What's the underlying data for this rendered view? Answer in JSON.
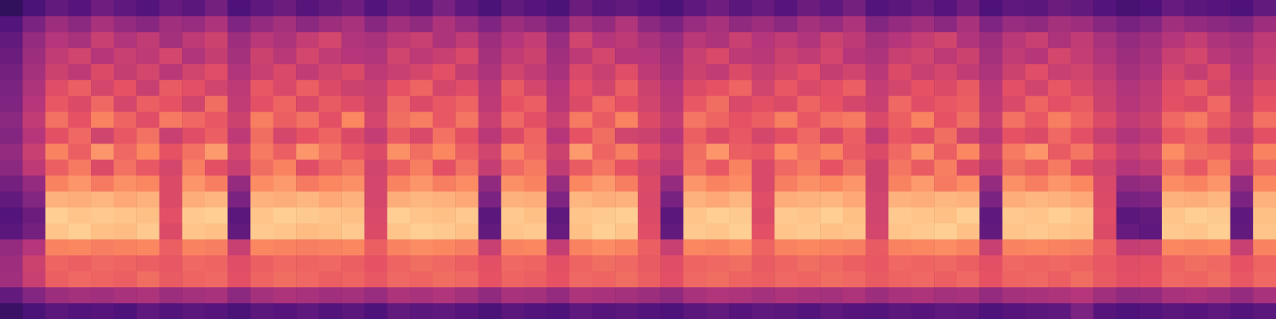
{
  "chart_data": {
    "type": "heatmap",
    "tick_labels": false,
    "grid": false,
    "zlim": [
      0,
      1
    ],
    "cells": [
      [
        0.2,
        0.24,
        0.28,
        0.26,
        0.27,
        0.25,
        0.29,
        0.26,
        0.28,
        0.27,
        0.24,
        0.28,
        0.27,
        0.29,
        0.26,
        0.28,
        0.25,
        0.3,
        0.28,
        0.29,
        0.27,
        0.24,
        0.28,
        0.26,
        0.25,
        0.29,
        0.27,
        0.28,
        0.26,
        0.25,
        0.28,
        0.3,
        0.27,
        0.29,
        0.28,
        0.26,
        0.29,
        0.27,
        0.26,
        0.28,
        0.27,
        0.29,
        0.28,
        0.25,
        0.27,
        0.28,
        0.29,
        0.36,
        0.27,
        0.25,
        0.26,
        0.28,
        0.27,
        0.29,
        0.26,
        0.28
      ],
      [
        0.3,
        0.38,
        0.44,
        0.46,
        0.45,
        0.47,
        0.48,
        0.44,
        0.46,
        0.47,
        0.4,
        0.46,
        0.48,
        0.47,
        0.45,
        0.46,
        0.43,
        0.48,
        0.47,
        0.49,
        0.46,
        0.41,
        0.47,
        0.46,
        0.42,
        0.48,
        0.47,
        0.46,
        0.44,
        0.41,
        0.47,
        0.49,
        0.48,
        0.46,
        0.48,
        0.47,
        0.46,
        0.48,
        0.44,
        0.47,
        0.48,
        0.46,
        0.47,
        0.42,
        0.46,
        0.47,
        0.48,
        0.5,
        0.45,
        0.41,
        0.42,
        0.47,
        0.48,
        0.46,
        0.42,
        0.47
      ],
      [
        0.45,
        0.55,
        0.66,
        0.68,
        0.67,
        0.66,
        0.69,
        0.65,
        0.67,
        0.68,
        0.62,
        0.67,
        0.69,
        0.68,
        0.66,
        0.67,
        0.64,
        0.68,
        0.67,
        0.69,
        0.68,
        0.63,
        0.67,
        0.66,
        0.63,
        0.68,
        0.67,
        0.69,
        0.66,
        0.62,
        0.68,
        0.69,
        0.67,
        0.66,
        0.68,
        0.67,
        0.69,
        0.68,
        0.65,
        0.67,
        0.68,
        0.66,
        0.68,
        0.63,
        0.67,
        0.68,
        0.66,
        0.69,
        0.65,
        0.62,
        0.63,
        0.68,
        0.67,
        0.69,
        0.64,
        0.68
      ],
      [
        0.44,
        0.56,
        0.67,
        0.66,
        0.68,
        0.67,
        0.66,
        0.64,
        0.68,
        0.67,
        0.61,
        0.66,
        0.68,
        0.67,
        0.68,
        0.66,
        0.63,
        0.67,
        0.69,
        0.68,
        0.66,
        0.62,
        0.68,
        0.67,
        0.62,
        0.67,
        0.69,
        0.68,
        0.65,
        0.61,
        0.67,
        0.68,
        0.69,
        0.65,
        0.67,
        0.69,
        0.68,
        0.66,
        0.64,
        0.68,
        0.67,
        0.68,
        0.66,
        0.62,
        0.68,
        0.67,
        0.68,
        0.67,
        0.64,
        0.61,
        0.62,
        0.67,
        0.69,
        0.68,
        0.63,
        0.67
      ],
      [
        0.42,
        0.5,
        0.74,
        0.75,
        0.73,
        0.74,
        0.75,
        0.66,
        0.74,
        0.73,
        0.55,
        0.75,
        0.74,
        0.73,
        0.74,
        0.75,
        0.66,
        0.74,
        0.76,
        0.75,
        0.73,
        0.55,
        0.74,
        0.75,
        0.54,
        0.74,
        0.76,
        0.74,
        0.66,
        0.55,
        0.75,
        0.74,
        0.76,
        0.67,
        0.74,
        0.75,
        0.74,
        0.73,
        0.65,
        0.74,
        0.75,
        0.76,
        0.74,
        0.55,
        0.74,
        0.75,
        0.74,
        0.73,
        0.66,
        0.54,
        0.55,
        0.75,
        0.74,
        0.75,
        0.55,
        0.74
      ],
      [
        0.28,
        0.34,
        0.88,
        0.9,
        0.87,
        0.86,
        0.89,
        0.6,
        0.88,
        0.87,
        0.3,
        0.89,
        0.88,
        0.86,
        0.87,
        0.89,
        0.6,
        0.88,
        0.9,
        0.89,
        0.87,
        0.3,
        0.88,
        0.89,
        0.31,
        0.87,
        0.9,
        0.88,
        0.61,
        0.3,
        0.89,
        0.88,
        0.9,
        0.62,
        0.88,
        0.89,
        0.87,
        0.88,
        0.58,
        0.88,
        0.89,
        0.9,
        0.87,
        0.3,
        0.88,
        0.89,
        0.88,
        0.87,
        0.6,
        0.31,
        0.29,
        0.89,
        0.88,
        0.9,
        0.3,
        0.88
      ],
      [
        0.26,
        0.32,
        0.9,
        0.88,
        0.89,
        0.88,
        0.87,
        0.62,
        0.89,
        0.9,
        0.28,
        0.88,
        0.9,
        0.89,
        0.88,
        0.87,
        0.59,
        0.9,
        0.88,
        0.87,
        0.89,
        0.28,
        0.89,
        0.87,
        0.29,
        0.88,
        0.89,
        0.9,
        0.6,
        0.28,
        0.88,
        0.9,
        0.89,
        0.6,
        0.89,
        0.88,
        0.9,
        0.87,
        0.57,
        0.89,
        0.88,
        0.87,
        0.9,
        0.29,
        0.89,
        0.88,
        0.9,
        0.88,
        0.61,
        0.28,
        0.3,
        0.88,
        0.9,
        0.89,
        0.29,
        0.87
      ],
      [
        0.3,
        0.38,
        0.84,
        0.83,
        0.85,
        0.82,
        0.84,
        0.6,
        0.83,
        0.85,
        0.36,
        0.84,
        0.83,
        0.85,
        0.82,
        0.84,
        0.58,
        0.83,
        0.85,
        0.84,
        0.82,
        0.36,
        0.84,
        0.83,
        0.37,
        0.85,
        0.83,
        0.84,
        0.59,
        0.35,
        0.84,
        0.82,
        0.85,
        0.61,
        0.83,
        0.84,
        0.85,
        0.82,
        0.57,
        0.84,
        0.83,
        0.85,
        0.84,
        0.36,
        0.83,
        0.85,
        0.84,
        0.82,
        0.6,
        0.35,
        0.37,
        0.84,
        0.83,
        0.85,
        0.36,
        0.84
      ],
      [
        0.34,
        0.42,
        0.74,
        0.78,
        0.72,
        0.77,
        0.75,
        0.6,
        0.78,
        0.73,
        0.42,
        0.76,
        0.79,
        0.72,
        0.75,
        0.77,
        0.58,
        0.74,
        0.78,
        0.73,
        0.76,
        0.41,
        0.77,
        0.74,
        0.43,
        0.75,
        0.79,
        0.73,
        0.6,
        0.42,
        0.78,
        0.74,
        0.76,
        0.59,
        0.73,
        0.77,
        0.75,
        0.78,
        0.56,
        0.74,
        0.79,
        0.72,
        0.76,
        0.42,
        0.77,
        0.73,
        0.78,
        0.75,
        0.59,
        0.41,
        0.43,
        0.76,
        0.74,
        0.78,
        0.42,
        0.75
      ],
      [
        0.4,
        0.52,
        0.66,
        0.72,
        0.6,
        0.7,
        0.64,
        0.58,
        0.73,
        0.62,
        0.55,
        0.69,
        0.74,
        0.61,
        0.67,
        0.71,
        0.57,
        0.66,
        0.73,
        0.62,
        0.7,
        0.54,
        0.68,
        0.72,
        0.53,
        0.65,
        0.71,
        0.63,
        0.58,
        0.52,
        0.7,
        0.64,
        0.74,
        0.59,
        0.68,
        0.72,
        0.63,
        0.69,
        0.56,
        0.71,
        0.65,
        0.73,
        0.6,
        0.52,
        0.69,
        0.66,
        0.72,
        0.61,
        0.57,
        0.5,
        0.53,
        0.7,
        0.64,
        0.73,
        0.55,
        0.68
      ],
      [
        0.42,
        0.55,
        0.74,
        0.66,
        0.78,
        0.68,
        0.75,
        0.63,
        0.7,
        0.79,
        0.58,
        0.72,
        0.66,
        0.78,
        0.71,
        0.64,
        0.6,
        0.77,
        0.69,
        0.75,
        0.66,
        0.57,
        0.74,
        0.68,
        0.56,
        0.79,
        0.67,
        0.73,
        0.62,
        0.55,
        0.69,
        0.78,
        0.66,
        0.64,
        0.76,
        0.7,
        0.74,
        0.65,
        0.6,
        0.68,
        0.77,
        0.66,
        0.75,
        0.56,
        0.72,
        0.78,
        0.65,
        0.71,
        0.61,
        0.54,
        0.57,
        0.76,
        0.69,
        0.67,
        0.58,
        0.74
      ],
      [
        0.38,
        0.5,
        0.62,
        0.68,
        0.57,
        0.64,
        0.7,
        0.55,
        0.61,
        0.66,
        0.52,
        0.69,
        0.58,
        0.63,
        0.67,
        0.6,
        0.54,
        0.65,
        0.59,
        0.7,
        0.62,
        0.51,
        0.6,
        0.67,
        0.5,
        0.63,
        0.69,
        0.57,
        0.56,
        0.5,
        0.66,
        0.6,
        0.64,
        0.58,
        0.62,
        0.68,
        0.59,
        0.66,
        0.53,
        0.64,
        0.61,
        0.69,
        0.57,
        0.51,
        0.63,
        0.6,
        0.68,
        0.62,
        0.55,
        0.49,
        0.52,
        0.64,
        0.67,
        0.59,
        0.53,
        0.62
      ],
      [
        0.4,
        0.53,
        0.7,
        0.63,
        0.74,
        0.67,
        0.61,
        0.72,
        0.68,
        0.64,
        0.56,
        0.73,
        0.66,
        0.7,
        0.62,
        0.75,
        0.58,
        0.69,
        0.73,
        0.64,
        0.71,
        0.55,
        0.68,
        0.62,
        0.55,
        0.72,
        0.65,
        0.74,
        0.6,
        0.54,
        0.71,
        0.67,
        0.63,
        0.66,
        0.73,
        0.64,
        0.7,
        0.72,
        0.59,
        0.66,
        0.74,
        0.63,
        0.69,
        0.55,
        0.7,
        0.64,
        0.73,
        0.67,
        0.6,
        0.53,
        0.56,
        0.68,
        0.72,
        0.65,
        0.57,
        0.7
      ],
      [
        0.37,
        0.5,
        0.64,
        0.6,
        0.68,
        0.58,
        0.66,
        0.63,
        0.57,
        0.69,
        0.53,
        0.62,
        0.67,
        0.59,
        0.65,
        0.61,
        0.56,
        0.68,
        0.6,
        0.64,
        0.67,
        0.52,
        0.63,
        0.66,
        0.51,
        0.6,
        0.68,
        0.62,
        0.57,
        0.51,
        0.64,
        0.69,
        0.59,
        0.62,
        0.6,
        0.67,
        0.63,
        0.58,
        0.55,
        0.68,
        0.61,
        0.64,
        0.66,
        0.52,
        0.59,
        0.67,
        0.62,
        0.65,
        0.56,
        0.5,
        0.53,
        0.62,
        0.6,
        0.68,
        0.54,
        0.63
      ],
      [
        0.36,
        0.48,
        0.61,
        0.66,
        0.58,
        0.63,
        0.55,
        0.65,
        0.62,
        0.57,
        0.52,
        0.64,
        0.59,
        0.66,
        0.6,
        0.56,
        0.55,
        0.63,
        0.67,
        0.58,
        0.61,
        0.51,
        0.65,
        0.58,
        0.5,
        0.62,
        0.57,
        0.66,
        0.56,
        0.5,
        0.6,
        0.63,
        0.67,
        0.57,
        0.64,
        0.59,
        0.62,
        0.66,
        0.54,
        0.58,
        0.63,
        0.6,
        0.65,
        0.51,
        0.62,
        0.57,
        0.64,
        0.59,
        0.55,
        0.49,
        0.52,
        0.61,
        0.65,
        0.58,
        0.53,
        0.6
      ],
      [
        0.34,
        0.46,
        0.56,
        0.52,
        0.6,
        0.54,
        0.58,
        0.51,
        0.57,
        0.61,
        0.49,
        0.55,
        0.59,
        0.53,
        0.57,
        0.6,
        0.52,
        0.55,
        0.58,
        0.62,
        0.54,
        0.48,
        0.57,
        0.53,
        0.47,
        0.59,
        0.55,
        0.61,
        0.52,
        0.47,
        0.56,
        0.53,
        0.6,
        0.55,
        0.58,
        0.62,
        0.54,
        0.57,
        0.51,
        0.6,
        0.55,
        0.58,
        0.53,
        0.48,
        0.56,
        0.61,
        0.55,
        0.57,
        0.52,
        0.46,
        0.49,
        0.58,
        0.54,
        0.6,
        0.5,
        0.56
      ],
      [
        0.32,
        0.44,
        0.53,
        0.57,
        0.5,
        0.55,
        0.52,
        0.58,
        0.49,
        0.54,
        0.46,
        0.56,
        0.51,
        0.58,
        0.53,
        0.5,
        0.49,
        0.57,
        0.52,
        0.55,
        0.59,
        0.46,
        0.53,
        0.56,
        0.45,
        0.52,
        0.58,
        0.5,
        0.5,
        0.45,
        0.55,
        0.59,
        0.52,
        0.51,
        0.56,
        0.53,
        0.58,
        0.5,
        0.48,
        0.55,
        0.57,
        0.52,
        0.56,
        0.46,
        0.53,
        0.5,
        0.58,
        0.54,
        0.49,
        0.44,
        0.47,
        0.55,
        0.58,
        0.51,
        0.48,
        0.54
      ],
      [
        0.3,
        0.42,
        0.5,
        0.47,
        0.55,
        0.49,
        0.53,
        0.46,
        0.52,
        0.56,
        0.44,
        0.51,
        0.48,
        0.54,
        0.58,
        0.49,
        0.47,
        0.52,
        0.55,
        0.48,
        0.53,
        0.44,
        0.5,
        0.54,
        0.43,
        0.57,
        0.5,
        0.52,
        0.47,
        0.43,
        0.51,
        0.48,
        0.55,
        0.5,
        0.53,
        0.49,
        0.56,
        0.52,
        0.46,
        0.5,
        0.54,
        0.57,
        0.49,
        0.44,
        0.51,
        0.55,
        0.48,
        0.53,
        0.47,
        0.42,
        0.45,
        0.5,
        0.54,
        0.48,
        0.46,
        0.52
      ],
      [
        0.26,
        0.36,
        0.44,
        0.4,
        0.47,
        0.42,
        0.39,
        0.45,
        0.43,
        0.48,
        0.37,
        0.42,
        0.46,
        0.4,
        0.44,
        0.47,
        0.39,
        0.45,
        0.41,
        0.48,
        0.43,
        0.37,
        0.44,
        0.41,
        0.36,
        0.46,
        0.42,
        0.49,
        0.4,
        0.36,
        0.43,
        0.47,
        0.41,
        0.44,
        0.4,
        0.46,
        0.43,
        0.48,
        0.38,
        0.42,
        0.45,
        0.4,
        0.47,
        0.37,
        0.43,
        0.41,
        0.46,
        0.44,
        0.39,
        0.35,
        0.38,
        0.45,
        0.42,
        0.4,
        0.38,
        0.44
      ],
      [
        0.18,
        0.24,
        0.3,
        0.27,
        0.33,
        0.29,
        0.26,
        0.31,
        0.28,
        0.34,
        0.25,
        0.29,
        0.32,
        0.27,
        0.3,
        0.33,
        0.26,
        0.31,
        0.28,
        0.35,
        0.29,
        0.24,
        0.3,
        0.27,
        0.24,
        0.32,
        0.28,
        0.3,
        0.27,
        0.24,
        0.29,
        0.33,
        0.28,
        0.31,
        0.27,
        0.32,
        0.29,
        0.34,
        0.26,
        0.28,
        0.31,
        0.27,
        0.33,
        0.25,
        0.29,
        0.28,
        0.32,
        0.3,
        0.26,
        0.23,
        0.25,
        0.31,
        0.28,
        0.27,
        0.25,
        0.3
      ]
    ]
  }
}
